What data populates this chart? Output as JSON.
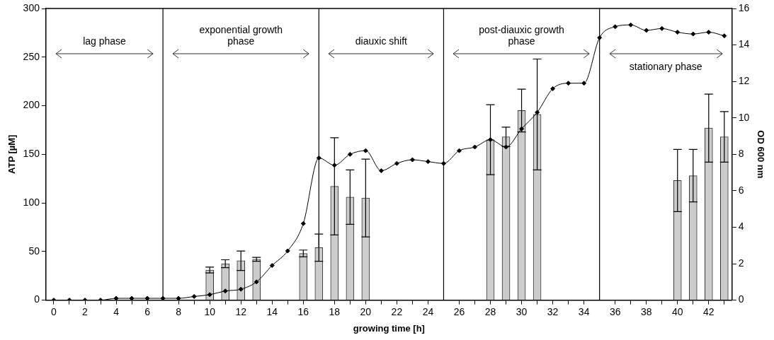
{
  "chart_data": {
    "type": "bar",
    "xlabel": "growing time [h]",
    "ylabel": "ATP [µM]",
    "y2label": "OD 600 nm",
    "xlim": [
      -0.5,
      43.5
    ],
    "xticks": [
      0,
      {
        "value": 1,
        "label": null
      },
      2,
      {
        "value": 3,
        "label": null
      },
      4,
      {
        "value": 5,
        "label": null
      },
      6,
      8,
      {
        "value": 9,
        "label": null
      },
      10,
      {
        "value": 11,
        "label": null
      },
      12,
      {
        "value": 13,
        "label": null
      },
      14,
      {
        "value": 15,
        "label": null
      },
      16,
      18,
      {
        "value": 19,
        "label": null
      },
      20,
      {
        "value": 21,
        "label": null
      },
      22,
      {
        "value": 23,
        "label": null
      },
      24,
      26,
      {
        "value": 27,
        "label": null
      },
      28,
      {
        "value": 29,
        "label": null
      },
      30,
      {
        "value": 31,
        "label": null
      },
      32,
      {
        "value": 33,
        "label": null
      },
      34,
      36,
      {
        "value": 37,
        "label": null
      },
      38,
      {
        "value": 39,
        "label": null
      },
      40,
      {
        "value": 41,
        "label": null
      },
      42,
      {
        "value": 43,
        "label": null
      }
    ],
    "ylim": [
      0,
      300
    ],
    "yticks": [
      0,
      50,
      100,
      150,
      200,
      250,
      300
    ],
    "y2lim": [
      0,
      16
    ],
    "y2ticks": [
      0,
      2,
      4,
      6,
      8,
      10,
      12,
      14,
      16
    ],
    "grid": false,
    "legend": false,
    "ref_lines": [
      {
        "axis": "x",
        "value": 7
      },
      {
        "axis": "x",
        "value": 17
      },
      {
        "axis": "x",
        "value": 25
      },
      {
        "axis": "x",
        "value": 35
      }
    ],
    "annotations": [
      "lag phase",
      "exponential growth phase",
      "diauxic shift",
      "post-diauxic growth phase",
      "stationary phase"
    ],
    "series": [
      {
        "color": "#cccccc",
        "x": [
          10,
          11,
          12,
          13,
          16,
          17,
          18,
          19,
          20,
          28,
          29,
          30,
          31,
          40,
          41,
          42,
          43
        ],
        "values": [
          31,
          37.5,
          40.5,
          42,
          48,
          54,
          117,
          106,
          105,
          165,
          168,
          195,
          191,
          123,
          128,
          177,
          168
        ],
        "errors": [
          3,
          4,
          10,
          2,
          3.5,
          14,
          50,
          28,
          40,
          36,
          10,
          22,
          57,
          32,
          27,
          35,
          26
        ]
      },
      {
        "type": "line",
        "axis": "y2",
        "color": "#000000",
        "marker": "diamond",
        "line_style": "solid",
        "x": [
          0,
          1,
          2,
          3,
          4,
          5,
          6,
          7,
          8,
          9,
          10,
          11,
          12,
          13,
          14,
          15,
          16,
          17,
          18,
          19,
          20,
          21,
          22,
          23,
          24,
          25,
          26,
          27,
          28,
          29,
          30,
          31,
          32,
          33,
          34,
          35,
          36,
          37,
          38,
          39,
          40,
          41,
          42,
          43
        ],
        "values": [
          0,
          0,
          0,
          0,
          0.1,
          0.1,
          0.1,
          0.1,
          0.1,
          0.2,
          0.3,
          0.5,
          0.6,
          1.0,
          1.9,
          2.7,
          4.2,
          7.8,
          7.4,
          8.0,
          8.2,
          7.1,
          7.5,
          7.7,
          7.6,
          7.5,
          8.2,
          8.4,
          8.8,
          8.4,
          9.4,
          10.3,
          11.6,
          11.9,
          11.9,
          14.4,
          15.0,
          15.1,
          14.8,
          14.9,
          14.7,
          14.6,
          14.7,
          14.5
        ]
      }
    ]
  }
}
